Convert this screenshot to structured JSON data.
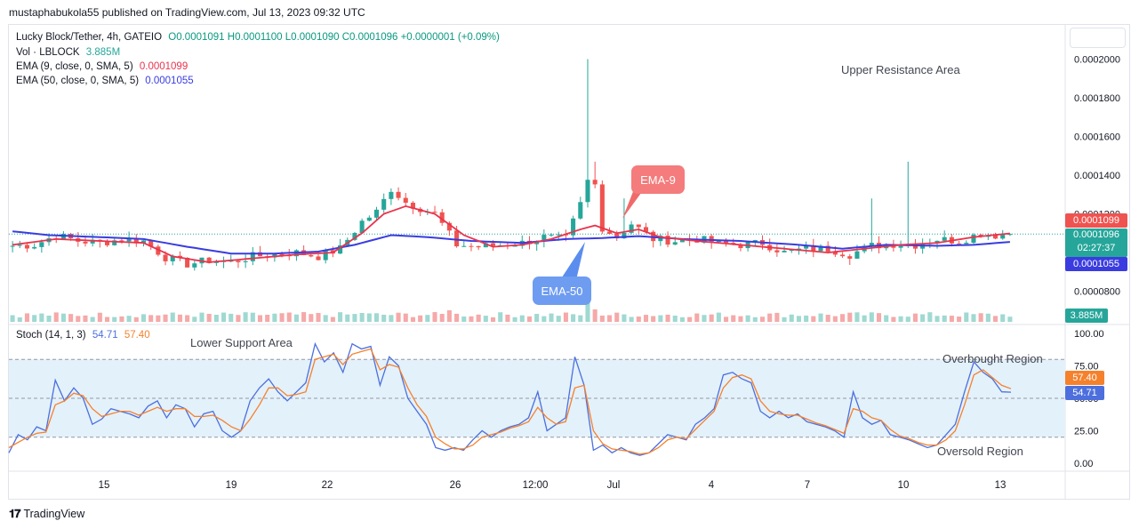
{
  "publisher": "mustaphabukola55 published on TradingView.com, Jul 13, 2023 09:32 UTC",
  "legend": {
    "symbol": "Lucky Block/Tether, 4h, GATEIO",
    "ohlc": "O0.0001091 H0.0001100 L0.0001090 C0.0001096 +0.0000001 (+0.09%)",
    "vol_label": "Vol · LBLOCK",
    "vol_value": "3.885M",
    "ema9_label": "EMA (9, close, 0, SMA, 5)",
    "ema9_value": "0.0001099",
    "ema50_label": "EMA (50, close, 0, SMA, 5)",
    "ema50_value": "0.0001055",
    "stoch_label": "Stoch (14, 1, 3)",
    "stoch_k": "54.71",
    "stoch_d": "57.40"
  },
  "annotations": {
    "upper_resistance": "Upper Resistance Area",
    "lower_support": "Lower Support Area",
    "ema9_callout": "EMA-9",
    "ema50_callout": "EMA-50",
    "overbought": "Overbought Region",
    "oversold": "Oversold Region"
  },
  "price_tags": {
    "ema9": "0.0001099",
    "last": "0.0001096",
    "countdown": "02:27:37",
    "ema50": "0.0001055",
    "volume": "3.885M",
    "stoch_d": "57.40",
    "stoch_k": "54.71"
  },
  "brand": "TradingView",
  "colors": {
    "up": "#26a69a",
    "down": "#ef5350",
    "ema9": "#e8344e",
    "ema50": "#3a3ce0",
    "stoch_k": "#4c6fdd",
    "stoch_d": "#f5812c",
    "band": "#e3f1fb"
  },
  "chart_data": [
    {
      "type": "candlestick",
      "name": "Lucky Block/Tether 4h",
      "y_axis_ticks": [
        "0.0002000",
        "0.0001800",
        "0.0001600",
        "0.0001400",
        "0.0001200",
        "0.0000800"
      ],
      "ylim": [
        7.2e-05,
        0.000203
      ],
      "x_tick_labels": [
        "15",
        "19",
        "22",
        "26",
        "12:00",
        "Jul",
        "4",
        "7",
        "10",
        "13"
      ],
      "last_close": 0.0001096,
      "ema9_last": 0.0001099,
      "ema50_last": 0.0001055,
      "close_path": [
        [
          0,
          0.0001035
        ],
        [
          3,
          0.000104
        ],
        [
          6,
          0.000109
        ],
        [
          9,
          0.000106
        ],
        [
          12,
          0.000105
        ],
        [
          15,
          0.000107
        ],
        [
          18,
          0.000106
        ],
        [
          21,
          9.75e-05
        ],
        [
          24,
          9.4e-05
        ],
        [
          27,
          9.6e-05
        ],
        [
          30,
          9.5e-05
        ],
        [
          33,
          9.8e-05
        ],
        [
          36,
          9.9e-05
        ],
        [
          39,
          0.0001
        ],
        [
          42,
          9.8e-05
        ],
        [
          45,
          0.000102
        ],
        [
          48,
          0.000116
        ],
        [
          50,
          0.000121
        ],
        [
          52,
          0.000133
        ],
        [
          54,
          0.000126
        ],
        [
          56,
          0.000123
        ],
        [
          58,
          0.00012
        ],
        [
          61,
          0.000104
        ],
        [
          64,
          0.000103
        ],
        [
          67,
          0.000104
        ],
        [
          70,
          0.000105
        ],
        [
          73,
          0.000108
        ],
        [
          76,
          0.000107
        ],
        [
          78,
          0.000125
        ],
        [
          79,
          0.000137
        ],
        [
          80,
          0.000135
        ],
        [
          81,
          0.000113
        ],
        [
          83,
          0.000108
        ],
        [
          85,
          0.000115
        ],
        [
          88,
          0.000107
        ],
        [
          91,
          0.000106
        ],
        [
          94,
          0.000107
        ],
        [
          97,
          0.000105
        ],
        [
          100,
          0.000104
        ],
        [
          103,
          0.000105
        ],
        [
          106,
          0.0001
        ],
        [
          109,
          0.000102
        ],
        [
          112,
          0.000102
        ],
        [
          115,
          9.9e-05
        ],
        [
          118,
          0.0001035
        ],
        [
          121,
          0.0001045
        ],
        [
          124,
          0.000104
        ],
        [
          127,
          0.000107
        ],
        [
          130,
          0.000106
        ],
        [
          133,
          0.00011
        ],
        [
          135,
          0.000109
        ],
        [
          137,
          0.0001096
        ]
      ],
      "ema9_path": [
        [
          0,
          0.000104
        ],
        [
          6,
          0.000107
        ],
        [
          12,
          0.000106
        ],
        [
          18,
          0.000105
        ],
        [
          22,
          9.8e-05
        ],
        [
          27,
          9.5e-05
        ],
        [
          33,
          9.7e-05
        ],
        [
          39,
          9.9e-05
        ],
        [
          44,
          0.0001
        ],
        [
          48,
          0.00011
        ],
        [
          51,
          0.00012
        ],
        [
          54,
          0.000124
        ],
        [
          58,
          0.00012
        ],
        [
          62,
          0.000109
        ],
        [
          66,
          0.000103
        ],
        [
          70,
          0.000104
        ],
        [
          74,
          0.000107
        ],
        [
          78,
          0.000112
        ],
        [
          80,
          0.000114
        ],
        [
          83,
          0.00011
        ],
        [
          86,
          0.000112
        ],
        [
          89,
          0.000108
        ],
        [
          94,
          0.000106
        ],
        [
          100,
          0.000104
        ],
        [
          106,
          0.000102
        ],
        [
          112,
          0.0001
        ],
        [
          117,
          0.000102
        ],
        [
          122,
          0.000104
        ],
        [
          127,
          0.000105
        ],
        [
          132,
          0.000108
        ],
        [
          137,
          0.0001099
        ]
      ],
      "ema50_path": [
        [
          0,
          0.000111
        ],
        [
          5,
          0.000109
        ],
        [
          12,
          0.000108
        ],
        [
          18,
          0.000107
        ],
        [
          24,
          0.000103
        ],
        [
          30,
          9.95e-05
        ],
        [
          36,
          9.95e-05
        ],
        [
          42,
          0.0001005
        ],
        [
          47,
          0.000104
        ],
        [
          52,
          0.000109
        ],
        [
          57,
          0.000108
        ],
        [
          63,
          0.000106
        ],
        [
          70,
          0.000105
        ],
        [
          76,
          0.000107
        ],
        [
          81,
          0.0001075
        ],
        [
          86,
          0.0001085
        ],
        [
          92,
          0.000107
        ],
        [
          100,
          0.000106
        ],
        [
          108,
          0.000104
        ],
        [
          114,
          0.000102
        ],
        [
          120,
          0.000104
        ],
        [
          127,
          0.0001035
        ],
        [
          132,
          0.000104
        ],
        [
          137,
          0.0001055
        ]
      ],
      "spike_highs": [
        [
          79,
          0.0002
        ],
        [
          80,
          0.000147
        ],
        [
          123,
          0.000147
        ],
        [
          118,
          0.000128
        ],
        [
          84,
          0.000128
        ]
      ]
    },
    {
      "type": "bar",
      "name": "Volume",
      "last_value": "3.885M",
      "notable_spike_index": 79
    },
    {
      "type": "line",
      "name": "Stoch (14, 1, 3)",
      "y_axis_ticks": [
        "100.00",
        "75.00",
        "50.00",
        "25.00",
        "0.00"
      ],
      "ylim": [
        0,
        100
      ],
      "bands": [
        20,
        50,
        80
      ],
      "series": [
        {
          "name": "%K",
          "last": 54.71,
          "values": [
            8,
            22,
            18,
            28,
            25,
            64,
            48,
            58,
            50,
            30,
            34,
            42,
            40,
            38,
            35,
            44,
            48,
            35,
            45,
            42,
            28,
            38,
            40,
            25,
            20,
            25,
            48,
            58,
            65,
            55,
            48,
            55,
            62,
            92,
            78,
            85,
            70,
            92,
            88,
            90,
            60,
            82,
            75,
            50,
            40,
            30,
            12,
            10,
            12,
            10,
            18,
            25,
            20,
            25,
            28,
            30,
            35,
            55,
            25,
            30,
            35,
            82,
            60,
            10,
            14,
            8,
            12,
            8,
            6,
            8,
            15,
            22,
            20,
            18,
            30,
            35,
            42,
            68,
            70,
            65,
            62,
            40,
            35,
            40,
            35,
            38,
            32,
            30,
            28,
            25,
            20,
            55,
            35,
            30,
            33,
            22,
            20,
            18,
            15,
            12,
            14,
            22,
            30,
            55,
            78,
            70,
            65,
            55,
            54.71
          ]
        },
        {
          "name": "%D",
          "last": 57.4,
          "values": [
            12,
            16,
            20,
            23,
            24,
            45,
            48,
            54,
            52,
            42,
            36,
            38,
            40,
            40,
            37,
            40,
            43,
            40,
            42,
            42,
            36,
            36,
            37,
            33,
            28,
            25,
            34,
            45,
            58,
            58,
            52,
            53,
            55,
            80,
            82,
            84,
            76,
            84,
            86,
            88,
            72,
            76,
            74,
            58,
            45,
            36,
            20,
            15,
            11,
            11,
            14,
            20,
            22,
            24,
            27,
            29,
            32,
            43,
            35,
            30,
            32,
            58,
            60,
            25,
            15,
            11,
            10,
            9,
            7,
            8,
            12,
            18,
            20,
            19,
            26,
            33,
            40,
            58,
            66,
            68,
            65,
            48,
            40,
            38,
            37,
            37,
            34,
            31,
            29,
            26,
            23,
            42,
            40,
            35,
            33,
            26,
            21,
            19,
            16,
            14,
            14,
            18,
            25,
            45,
            68,
            72,
            66,
            60,
            57.4
          ]
        }
      ]
    }
  ]
}
